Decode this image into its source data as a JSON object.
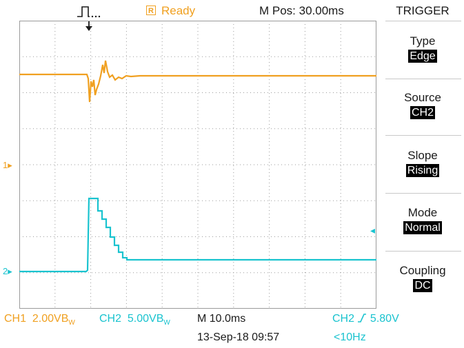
{
  "status": {
    "ready_badge": "R",
    "ready_label": "Ready",
    "mpos": "M Pos: 30.00ms"
  },
  "trigger_menu": {
    "title": "TRIGGER",
    "items": [
      {
        "label": "Type",
        "value": "Edge"
      },
      {
        "label": "Source",
        "value": "CH2"
      },
      {
        "label": "Slope",
        "value": "Rising"
      },
      {
        "label": "Mode",
        "value": "Normal"
      },
      {
        "label": "Coupling",
        "value": "DC"
      }
    ]
  },
  "markers": {
    "ch1": "1",
    "ch2": "2"
  },
  "bottom": {
    "ch1_label": "CH1",
    "ch1_scale": "2.00VB",
    "ch1_unit": "W",
    "ch2_label": "CH2",
    "ch2_scale": "5.00VB",
    "ch2_unit": "W",
    "timebase": "M 10.0ms",
    "trig_source": "CH2",
    "trig_level": "5.80V",
    "date": "13-Sep-18 09:57",
    "freq": "<10Hz"
  },
  "colors": {
    "ch1": "#f0a020",
    "ch2": "#19c3cf",
    "grid": "#9a9a9a"
  }
}
